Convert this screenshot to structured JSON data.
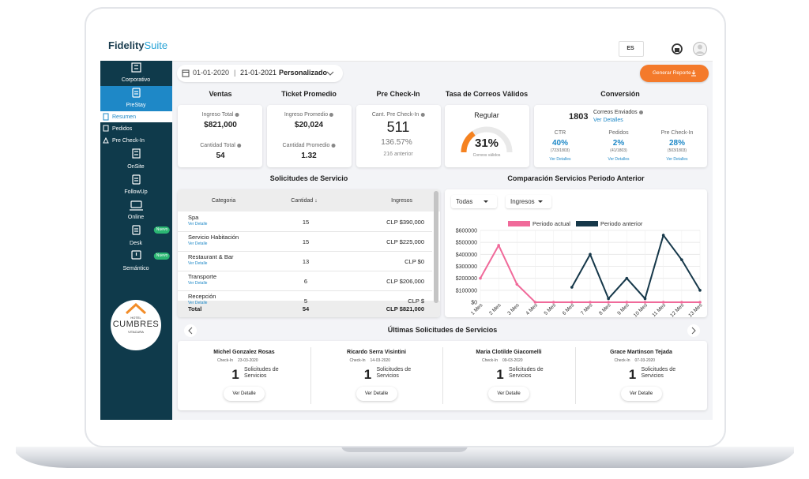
{
  "header": {
    "logo_bold": "Fidelity",
    "logo_light": "Suite",
    "language": "ES"
  },
  "sidebar": {
    "items": [
      {
        "label": "Corporativo"
      },
      {
        "label": "PreStay",
        "subitems": [
          "Resumen",
          "Pedidos",
          "Pre Check-In"
        ]
      },
      {
        "label": "OnSite"
      },
      {
        "label": "FollowUp"
      },
      {
        "label": "Online"
      },
      {
        "label": "Desk",
        "badge": "Nuevo"
      },
      {
        "label": "Semántico",
        "badge": "Nuevo"
      }
    ],
    "hotel": {
      "top": "HOTEL",
      "name": "CUMBRES",
      "bottom": "VITACURA"
    }
  },
  "toolbar": {
    "date_from": "01-01-2020",
    "separator": "|",
    "date_to": "21-01-2021",
    "range": "Personalizado",
    "button": "Generar Reporte"
  },
  "kpis": {
    "ventas": {
      "title": "Ventas",
      "label1": "Ingreso Total",
      "value1": "$821,000",
      "label2": "Cantidad Total",
      "value2": "54"
    },
    "ticket": {
      "title": "Ticket Promedio",
      "label1": "Ingreso Promedio",
      "value1": "$20,024",
      "label2": "Cantidad Promedio",
      "value2": "1.32"
    },
    "precheckin": {
      "title": "Pre Check-In",
      "label": "Cant. Pre Check-In",
      "value": "511",
      "change": "136.57%",
      "previous": "216 anterior"
    },
    "correos": {
      "title": "Tasa de Correos Válidos",
      "status": "Regular",
      "gauge_value": 31,
      "gauge_label": "31%",
      "caption": "Correos válidos"
    },
    "conversion": {
      "title": "Conversión",
      "sent_value": "1803",
      "sent_label": "Correos Enviados",
      "sent_link": "Ver Detalles",
      "metrics": [
        {
          "label": "CTR",
          "value": "40%",
          "ratio": "(723/1803)",
          "link": "Ver Detalles"
        },
        {
          "label": "Pedidos",
          "value": "2%",
          "ratio": "(41/1803)",
          "link": "Ver Detalles"
        },
        {
          "label": "Pre Check-In",
          "value": "28%",
          "ratio": "(503/1803)",
          "link": "Ver Detalles"
        }
      ]
    }
  },
  "services_table": {
    "title": "Solicitudes de Servicio",
    "columns": [
      "Categoria",
      "Cantidad ↓",
      "Ingresos"
    ],
    "rows": [
      {
        "category": "Spa",
        "link": "Ver Detalle",
        "count": "15",
        "income": "CLP $390,000"
      },
      {
        "category": "Servicio Habitación",
        "link": "Ver Detalle",
        "count": "15",
        "income": "CLP $225,000"
      },
      {
        "category": "Restaurant & Bar",
        "link": "Ver Detalle",
        "count": "13",
        "income": "CLP $0"
      },
      {
        "category": "Transporte",
        "link": "Ver Detalle",
        "count": "6",
        "income": "CLP $206,000"
      },
      {
        "category": "Recepción",
        "link": "Ver Detalle",
        "count": "5",
        "income": "CLP $"
      }
    ],
    "total": {
      "label": "Total",
      "count": "54",
      "income": "CLP $821,000"
    }
  },
  "chart_data": {
    "type": "line",
    "title": "Comparación Servicios Periodo Anterior",
    "filters": [
      "Todas",
      "Ingresos"
    ],
    "categories": [
      "1 Mes",
      "2 Mes",
      "3 Mes",
      "4 Mes",
      "5 Mes",
      "6 Mes",
      "7 Mes",
      "8 Mes",
      "9 Mes",
      "10 Mes",
      "11 Mes",
      "12 Mes",
      "13 Mes"
    ],
    "series": [
      {
        "name": "Periodo actual",
        "color": "#f06a9a",
        "values": [
          200000,
          475000,
          150000,
          0,
          0,
          0,
          0,
          0,
          0,
          0,
          0,
          0,
          0
        ]
      },
      {
        "name": "Periodo anterior",
        "color": "#16384a",
        "values": [
          null,
          null,
          null,
          null,
          null,
          125000,
          400000,
          30000,
          200000,
          30000,
          560000,
          355000,
          100000
        ]
      }
    ],
    "ylim": [
      0,
      600000
    ],
    "yticks": [
      {
        "value": 0,
        "label": "$0"
      },
      {
        "value": 100000,
        "label": "$100000"
      },
      {
        "value": 200000,
        "label": "$200000"
      },
      {
        "value": 300000,
        "label": "$300000"
      },
      {
        "value": 400000,
        "label": "$400000"
      },
      {
        "value": 500000,
        "label": "$500000"
      },
      {
        "value": 600000,
        "label": "$600000"
      }
    ],
    "grid": true
  },
  "latest": {
    "title": "Últimas Solicitudes de Servicios",
    "cards": [
      {
        "name": "Michel Gonzalez Rosas",
        "checkin_label": "Check-In",
        "checkin": "23-03-2020",
        "count": "1",
        "count_label": "Solicitudes de Servicios",
        "button": "Ver Detalle"
      },
      {
        "name": "Ricardo Serra Visintini",
        "checkin_label": "Check-In",
        "checkin": "14-03-2020",
        "count": "1",
        "count_label": "Solicitudes de Servicios",
        "button": "Ver Detalle"
      },
      {
        "name": "Maria Clotilde Giacomelli",
        "checkin_label": "Check-In",
        "checkin": "09-03-2020",
        "count": "1",
        "count_label": "Solicitudes de Servicios",
        "button": "Ver Detalle"
      },
      {
        "name": "Grace Martinson Tejada",
        "checkin_label": "Check-In",
        "checkin": "07-03-2020",
        "count": "1",
        "count_label": "Solicitudes de Servicios",
        "button": "Ver Detalle"
      }
    ]
  }
}
